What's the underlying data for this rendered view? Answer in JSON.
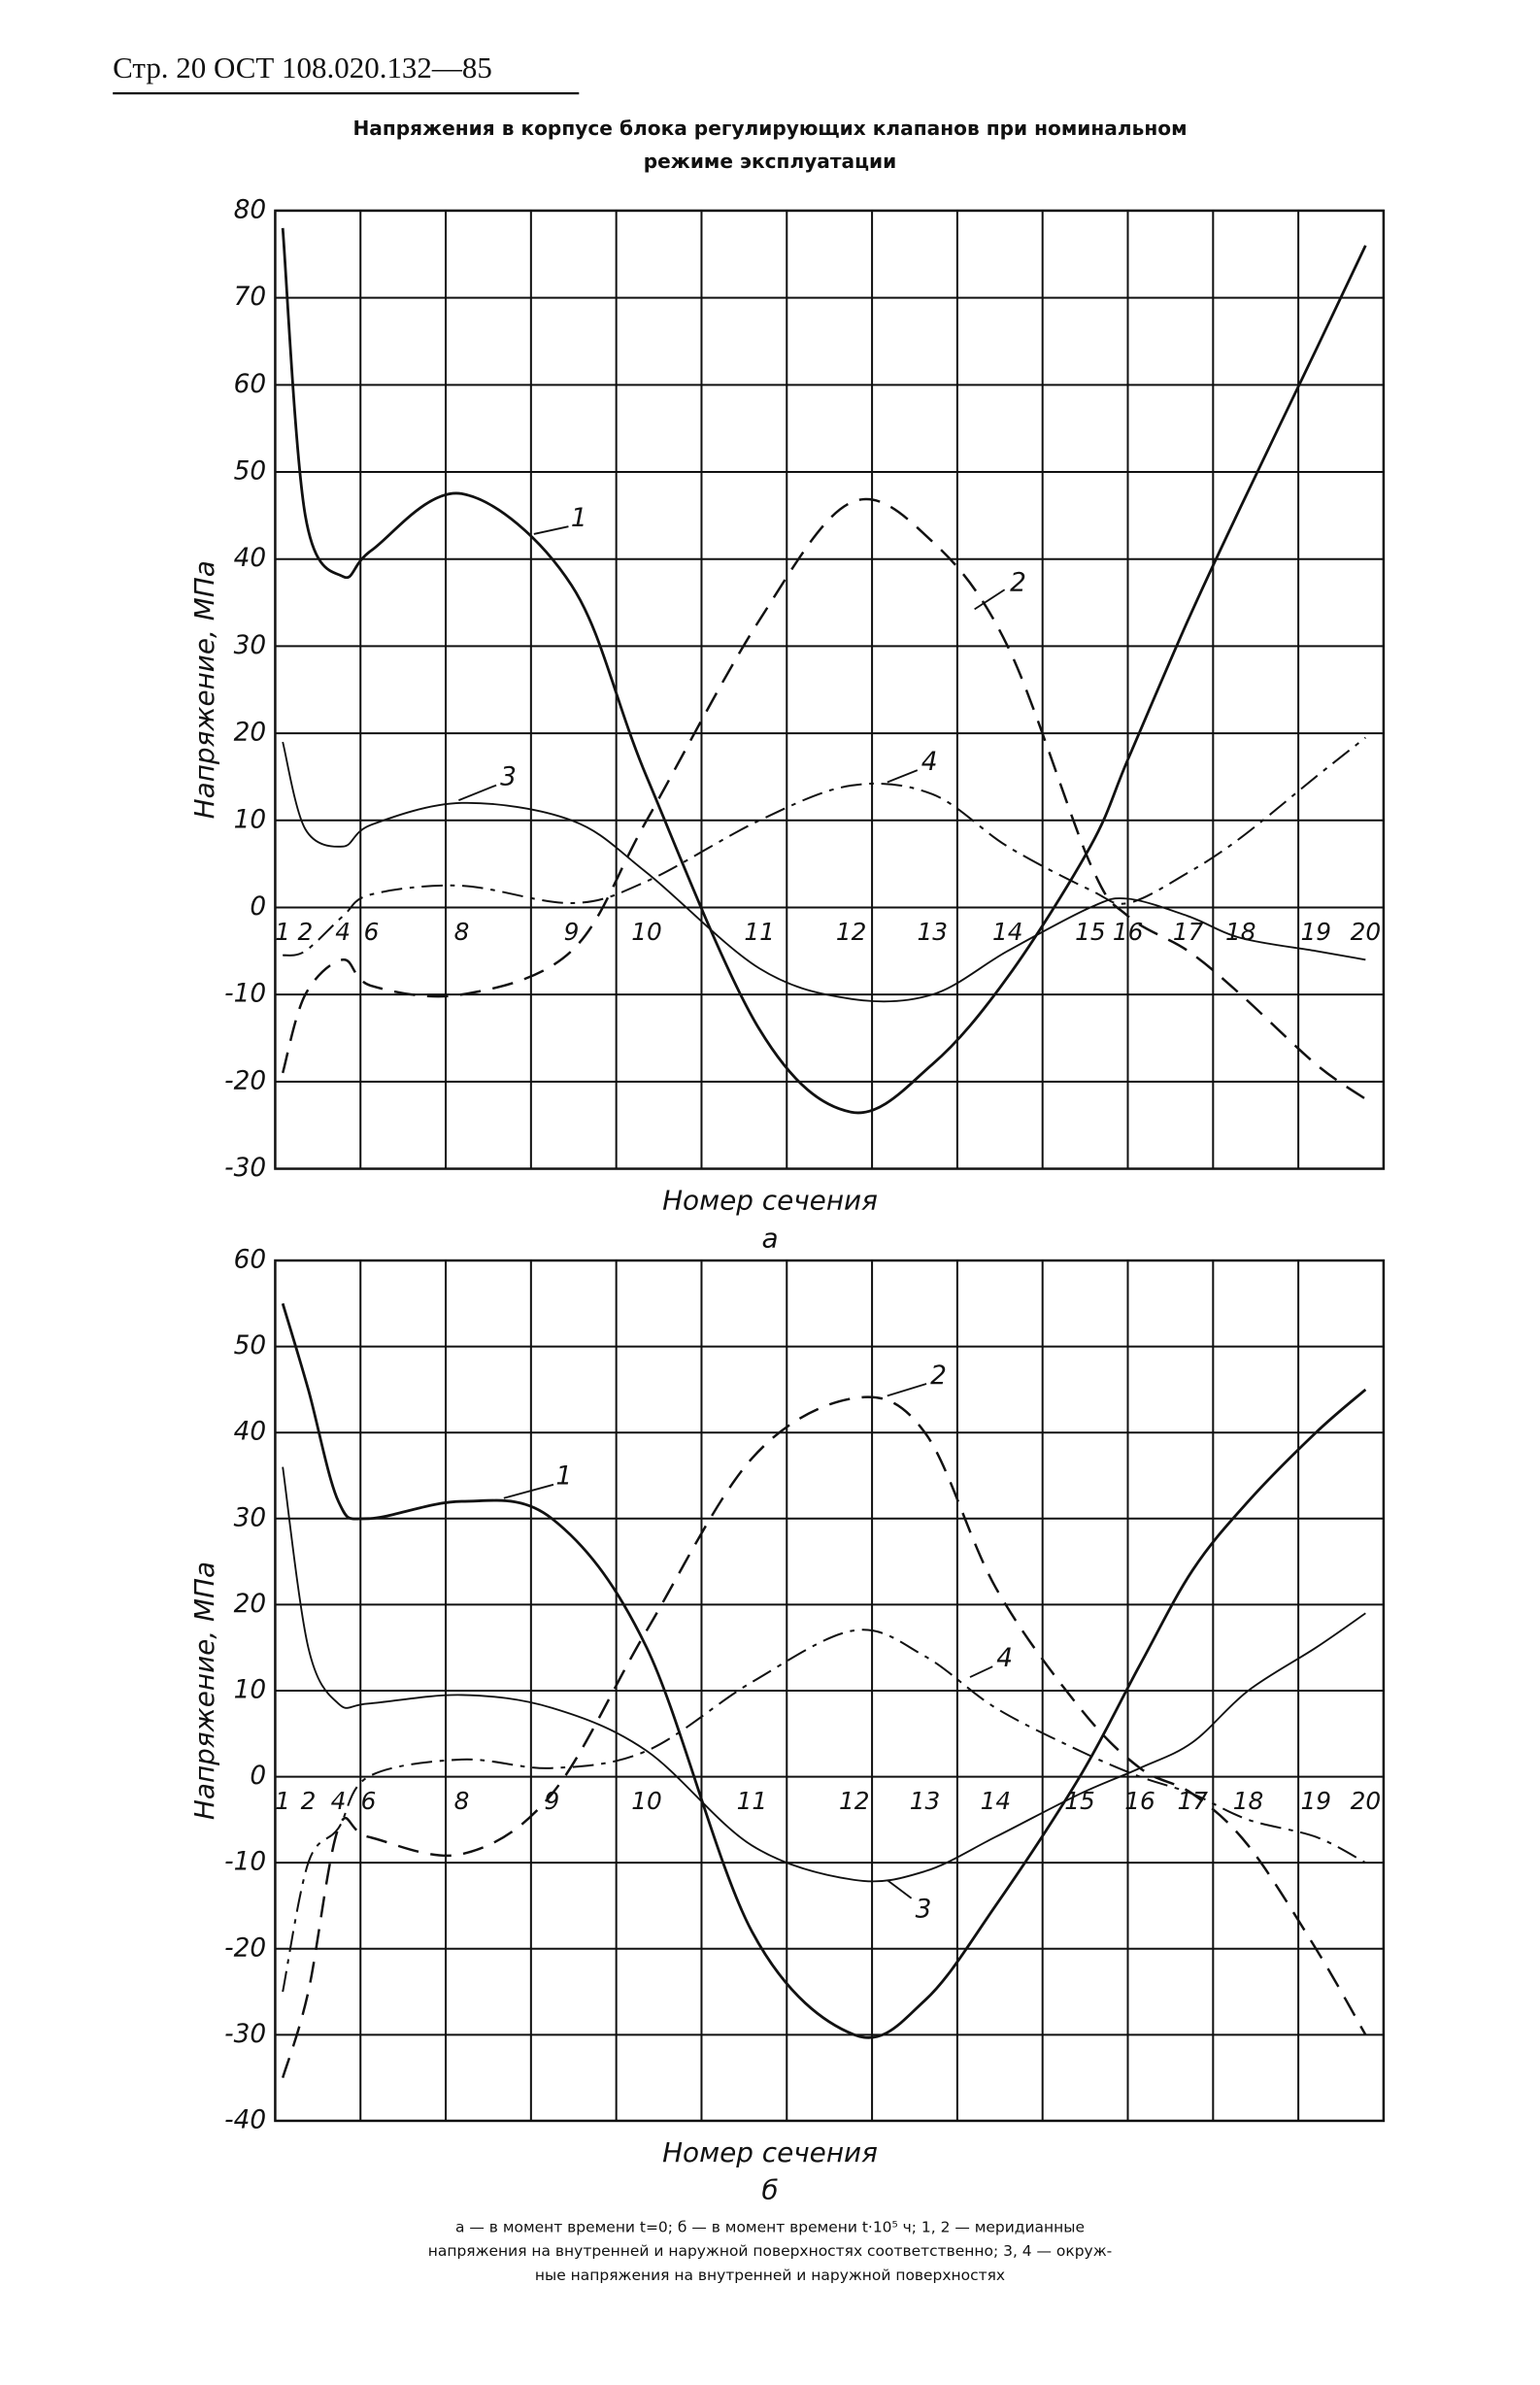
{
  "header": "Стр. 20 ОСТ 108.020.132—85",
  "title": [
    "Напряжения в корпусе блока регулирующих клапанов при номинальном",
    "режиме эксплуатации"
  ],
  "chart_data": [
    {
      "type": "line",
      "ylabel": "Напряжение, МПа",
      "xlabel": "Номер сечения",
      "sublabel": "а",
      "ylim": [
        -30,
        80
      ],
      "yticks": [
        80,
        70,
        60,
        50,
        40,
        30,
        20,
        10,
        0,
        -10,
        -20,
        -30
      ],
      "x": [
        1,
        2,
        4,
        6,
        8,
        9,
        10,
        11,
        12,
        13,
        14,
        15,
        16,
        17,
        18,
        19,
        20
      ],
      "series": [
        {
          "name": "1",
          "color": "#111111",
          "style": "solid",
          "values": [
            78,
            45,
            38,
            41,
            47.5,
            37,
            15,
            -14,
            -23.5,
            -18,
            -8,
            7,
            17,
            33,
            46,
            64,
            76
          ]
        },
        {
          "name": "2",
          "color": "#111111",
          "style": "dashed",
          "values": [
            -19,
            -10,
            -6,
            -9,
            -10,
            -5,
            10,
            33,
            46.5,
            42,
            30,
            5,
            -1,
            -5,
            -10,
            -18,
            -22
          ]
        },
        {
          "name": "3",
          "color": "#111111",
          "style": "solid",
          "values": [
            19,
            9,
            7,
            9.5,
            12,
            10,
            4,
            -7,
            -10.5,
            -10,
            -5,
            0,
            1,
            -1,
            -3.5,
            -5,
            -6
          ]
        },
        {
          "name": "4",
          "color": "#111111",
          "style": "dashdot",
          "values": [
            -5.5,
            -5,
            -1,
            1.5,
            2.5,
            0.5,
            3,
            10,
            14,
            13,
            7,
            2,
            0.5,
            4,
            8,
            15,
            19.5
          ]
        }
      ]
    },
    {
      "type": "line",
      "ylabel": "Напряжение, МПа",
      "xlabel": "Номер сечения",
      "sublabel": "б",
      "ylim": [
        -40,
        60
      ],
      "yticks": [
        60,
        50,
        40,
        30,
        20,
        10,
        0,
        -10,
        -20,
        -30,
        -40
      ],
      "x": [
        1,
        2,
        4,
        6,
        8,
        9,
        10,
        11,
        12,
        13,
        14,
        15,
        16,
        17,
        18,
        19,
        20
      ],
      "series": [
        {
          "name": "1",
          "color": "#111111",
          "style": "solid",
          "values": [
            55,
            45,
            32,
            30,
            32,
            30,
            15,
            -18,
            -30,
            -26,
            -15,
            0,
            13,
            24,
            32,
            40,
            45
          ]
        },
        {
          "name": "2",
          "color": "#111111",
          "style": "dashed",
          "values": [
            -35,
            -25,
            -6,
            -7,
            -9,
            -2,
            17,
            37,
            44,
            40,
            22,
            8,
            1,
            -2,
            -8,
            -20,
            -30
          ]
        },
        {
          "name": "3",
          "color": "#111111",
          "style": "solid",
          "values": [
            36,
            15,
            8.5,
            8.5,
            9.5,
            8,
            3,
            -8,
            -12,
            -11,
            -7,
            -2,
            1,
            4,
            10,
            15,
            19
          ]
        },
        {
          "name": "4",
          "color": "#111111",
          "style": "dashdot",
          "values": [
            -25,
            -10,
            -6,
            0,
            2,
            1,
            3,
            11,
            17,
            14,
            8,
            3,
            0,
            -2,
            -5,
            -7,
            -10
          ]
        }
      ]
    }
  ],
  "caption": [
    "а — в момент времени t=0; б — в момент времени t·10⁵ ч; 1, 2 — меридианные",
    "напряжения на внутренней и наружной поверхностях соответственно; 3, 4 — окруж-",
    "ные напряжения на внутренней и наружной поверхностях"
  ]
}
